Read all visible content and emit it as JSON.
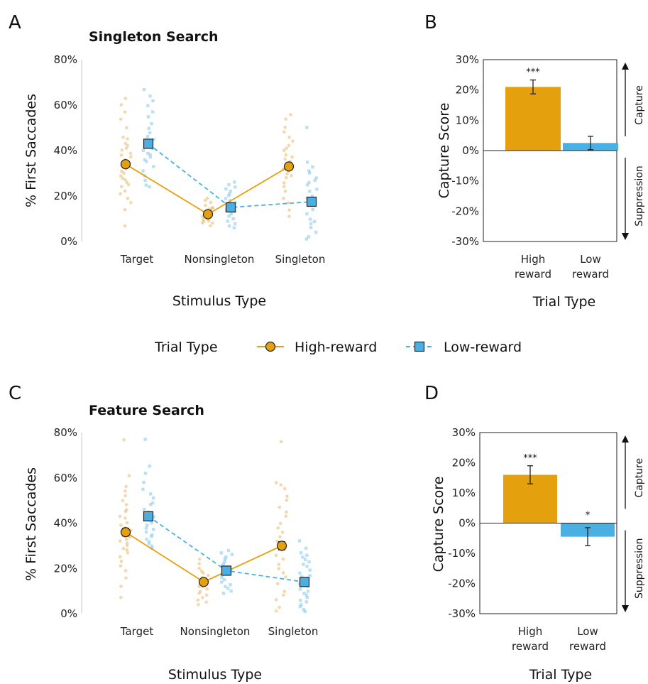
{
  "colors": {
    "high": "#E5A00D",
    "low": "#4AB0E4",
    "high_jitter": "#E9B76A",
    "low_jitter": "#8ECCF0"
  },
  "legend": {
    "title": "Trial Type",
    "high_label": "High-reward",
    "low_label": "Low-reward"
  },
  "chart_data": [
    {
      "panel": "A",
      "type": "line",
      "title": "Singleton Search",
      "xlabel": "Stimulus Type",
      "ylabel": "% First Saccades",
      "categories": [
        "Target",
        "Nonsingleton",
        "Singleton"
      ],
      "y_ticks": [
        "0%",
        "20%",
        "40%",
        "60%",
        "80%"
      ],
      "ylim": [
        0,
        80
      ],
      "series": [
        {
          "name": "High-reward",
          "values": [
            34,
            12,
            33
          ],
          "errors": [
            1.5,
            1.2,
            1.5
          ]
        },
        {
          "name": "Low-reward",
          "values": [
            43,
            15,
            17.5
          ],
          "errors": [
            1.5,
            1.4,
            1.6
          ]
        }
      ],
      "jitter": {
        "high": [
          [
            63,
            60,
            57,
            54,
            50,
            46,
            45,
            43,
            42,
            41,
            40,
            39,
            38,
            37,
            36,
            35,
            34,
            33,
            32,
            31,
            30,
            29,
            28,
            27,
            26,
            25,
            24,
            22,
            21,
            19,
            17,
            14,
            7
          ],
          [
            19,
            18,
            17,
            16,
            15,
            15,
            14,
            14,
            13,
            13,
            12,
            12,
            11,
            11,
            10,
            10,
            9,
            9,
            8,
            8,
            7
          ],
          [
            56,
            54,
            50,
            48,
            46,
            44,
            42,
            41,
            40,
            38,
            37,
            36,
            35,
            34,
            33,
            32,
            31,
            30,
            29,
            28,
            26,
            24,
            22,
            19,
            17,
            14,
            11
          ]
        ],
        "low": [
          [
            67,
            64,
            62,
            60,
            57,
            55,
            52,
            50,
            48,
            46,
            45,
            44,
            43,
            42,
            41,
            40,
            39,
            38,
            37,
            36,
            35,
            33,
            31,
            29,
            27,
            25,
            24
          ],
          [
            26,
            25,
            24,
            23,
            22,
            21,
            20,
            19,
            18,
            17,
            16,
            15,
            14,
            13,
            12,
            11,
            10,
            9,
            8,
            7,
            6
          ],
          [
            50,
            35,
            33,
            31,
            30,
            28,
            27,
            26,
            25,
            23,
            22,
            20,
            19,
            18,
            16,
            14,
            12,
            10,
            9,
            8,
            6,
            4,
            2,
            1
          ]
        ]
      }
    },
    {
      "panel": "B",
      "type": "bar",
      "xlabel": "Trial Type",
      "ylabel": "Capture Score",
      "categories": [
        "High\nreward",
        "Low\nreward"
      ],
      "category_lines": [
        [
          "High",
          "reward"
        ],
        [
          "Low",
          "reward"
        ]
      ],
      "y_ticks": [
        "-30%",
        "-20%",
        "-10%",
        "0%",
        "10%",
        "20%",
        "30%"
      ],
      "ylim": [
        -30,
        30
      ],
      "values": [
        21,
        2.5
      ],
      "errors": [
        2.3,
        2.2
      ],
      "significance": [
        "***",
        ""
      ],
      "side_labels": {
        "up": "Capture",
        "down": "Suppression"
      }
    },
    {
      "panel": "C",
      "type": "line",
      "title": "Feature Search",
      "xlabel": "Stimulus Type",
      "ylabel": "% First Saccades",
      "categories": [
        "Target",
        "Nonsingleton",
        "Singleton"
      ],
      "y_ticks": [
        "0%",
        "20%",
        "40%",
        "60%",
        "80%"
      ],
      "ylim": [
        0,
        80
      ],
      "series": [
        {
          "name": "High-reward",
          "values": [
            36,
            14,
            30
          ],
          "errors": [
            1.7,
            1.3,
            1.8
          ]
        },
        {
          "name": "Low-reward",
          "values": [
            43,
            19,
            14
          ],
          "errors": [
            1.6,
            1.3,
            1.8
          ]
        }
      ],
      "jitter": {
        "high": [
          [
            77,
            61,
            56,
            54,
            52,
            50,
            48,
            46,
            45,
            43,
            42,
            40,
            39,
            38,
            37,
            36,
            35,
            34,
            33,
            32,
            31,
            30,
            29,
            28,
            27,
            25,
            23,
            21,
            19,
            16,
            12,
            7
          ],
          [
            24,
            22,
            20,
            19,
            18,
            17,
            16,
            15,
            14,
            14,
            13,
            12,
            12,
            11,
            10,
            9,
            8,
            7,
            6,
            5,
            4
          ],
          [
            76,
            58,
            57,
            55,
            52,
            50,
            47,
            45,
            43,
            40,
            38,
            36,
            34,
            32,
            30,
            28,
            26,
            24,
            22,
            20,
            18,
            16,
            13,
            10,
            8,
            6,
            3,
            1
          ]
        ],
        "low": [
          [
            77,
            65,
            62,
            58,
            55,
            53,
            51,
            49,
            48,
            46,
            45,
            44,
            43,
            42,
            41,
            40,
            39,
            38,
            37,
            36,
            35,
            34,
            33,
            32,
            31,
            30,
            29
          ],
          [
            28,
            27,
            26,
            25,
            24,
            23,
            22,
            21,
            20,
            19,
            18,
            17,
            16,
            15,
            14,
            13,
            12,
            11,
            10,
            9
          ],
          [
            32,
            29,
            27,
            26,
            25,
            24,
            23,
            22,
            21,
            19,
            18,
            17,
            16,
            15,
            14,
            13,
            12,
            11,
            10,
            9,
            8,
            7,
            6,
            5,
            4,
            3,
            2,
            1
          ]
        ]
      }
    },
    {
      "panel": "D",
      "type": "bar",
      "xlabel": "Trial Type",
      "ylabel": "Capture Score",
      "categories": [
        "High\nreward",
        "Low\nreward"
      ],
      "category_lines": [
        [
          "High",
          "reward"
        ],
        [
          "Low",
          "reward"
        ]
      ],
      "y_ticks": [
        "-30%",
        "-20%",
        "-10%",
        "0%",
        "10%",
        "20%",
        "30%"
      ],
      "ylim": [
        -30,
        30
      ],
      "values": [
        16,
        -4.5
      ],
      "errors": [
        3,
        3
      ],
      "significance": [
        "***",
        "*"
      ],
      "side_labels": {
        "up": "Capture",
        "down": "Suppression"
      }
    }
  ]
}
